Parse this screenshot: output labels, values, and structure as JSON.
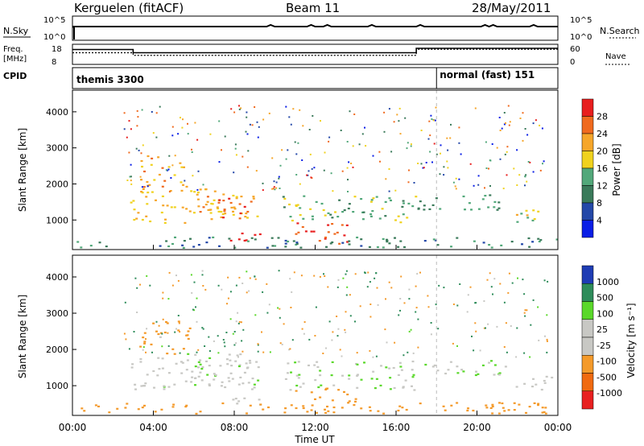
{
  "header": {
    "site": "Kerguelen (fitACF)",
    "beam": "Beam 11",
    "date": "28/May/2011"
  },
  "strips": {
    "nsky_label": "N.Sky",
    "nsky_ticks": [
      "10^5",
      "10^0"
    ],
    "nsearch_label": "N.Search",
    "nsearch_ticks": [
      "10^5",
      "10^0"
    ],
    "freq_label": "Freq.",
    "freq_unit": "[MHz]",
    "freq_ticks": [
      "18",
      "8"
    ],
    "nave_label": "Nave",
    "nave_ticks": [
      "60",
      "0"
    ],
    "cpid_label": "CPID",
    "cpid_segments": [
      {
        "label": "themis 3300",
        "start_h": 0,
        "end_h": 18.0
      },
      {
        "label": "normal (fast) 151",
        "start_h": 18.0,
        "end_h": 24
      }
    ],
    "freq_steps": [
      {
        "start_h": 0,
        "end_h": 3.0,
        "level": 0.74
      },
      {
        "start_h": 3.0,
        "end_h": 17.0,
        "level": 0.58
      },
      {
        "start_h": 17.0,
        "end_h": 24,
        "level": 0.8
      }
    ]
  },
  "panels": {
    "power": {
      "ylabel": "Slant Range [km]",
      "yticks": [
        "4000",
        "3000",
        "2000",
        "1000"
      ],
      "colorbar_label": "Power [dB]",
      "colorbar_ticks": [
        "28",
        "24",
        "20",
        "16",
        "12",
        "8",
        "4"
      ]
    },
    "velocity": {
      "ylabel": "Slant Range [km]",
      "yticks": [
        "4000",
        "3000",
        "2000",
        "1000"
      ],
      "colorbar_label": "Velocity  [m s⁻¹]",
      "colorbar_ticks": [
        "1000",
        "500",
        "100",
        "25",
        "-25",
        "-100",
        "-500",
        "-1000"
      ]
    }
  },
  "xaxis": {
    "label": "Time UT",
    "ticks": [
      "00:00",
      "04:00",
      "08:00",
      "12:00",
      "16:00",
      "20:00",
      "00:00"
    ]
  },
  "colors": {
    "power_scale": [
      "#0a1ee6",
      "#2448a8",
      "#3a7a5a",
      "#52a87a",
      "#f0d21e",
      "#f6a62a",
      "#f06a1e",
      "#e81e1e"
    ],
    "velocity_scale": [
      "#e82020",
      "#f06a10",
      "#f49a2a",
      "#c8c8c4",
      "#c8c8c4",
      "#5ad82a",
      "#2e8c5a",
      "#1e3cb4"
    ]
  },
  "chart_data": {
    "type": "heatmap",
    "x_range_h": [
      0,
      24
    ],
    "y_range_km": [
      180,
      4600
    ],
    "power_range_db": [
      0,
      32
    ],
    "velocity_range": [
      -1200,
      1200
    ],
    "regions": [
      {
        "t0": 2.8,
        "t1": 9.2,
        "r0": 900,
        "r1": 1900,
        "power": 20,
        "velocity": -20
      },
      {
        "t0": 3.3,
        "t1": 5.8,
        "r0": 1900,
        "r1": 2800,
        "power": 22,
        "velocity": -150
      },
      {
        "t0": 6.0,
        "t1": 9.0,
        "r0": 1000,
        "r1": 1700,
        "power": 26,
        "velocity": 10
      },
      {
        "t0": 7.5,
        "t1": 9.3,
        "r0": 450,
        "r1": 800,
        "power": 30,
        "velocity": -60
      },
      {
        "t0": 10.3,
        "t1": 17.0,
        "r0": 900,
        "r1": 1700,
        "power": 14,
        "velocity": 0
      },
      {
        "t0": 11.0,
        "t1": 14.0,
        "r0": 350,
        "r1": 950,
        "power": 28,
        "velocity": -300
      },
      {
        "t0": 17.0,
        "t1": 21.5,
        "r0": 1300,
        "r1": 1750,
        "power": 12,
        "velocity": 15
      },
      {
        "t0": 21.5,
        "t1": 23.7,
        "r0": 900,
        "r1": 1300,
        "power": 18,
        "velocity": -40
      },
      {
        "t0": 0.0,
        "t1": 24.0,
        "r0": 250,
        "r1": 550,
        "power": 10,
        "velocity": -200
      }
    ]
  }
}
